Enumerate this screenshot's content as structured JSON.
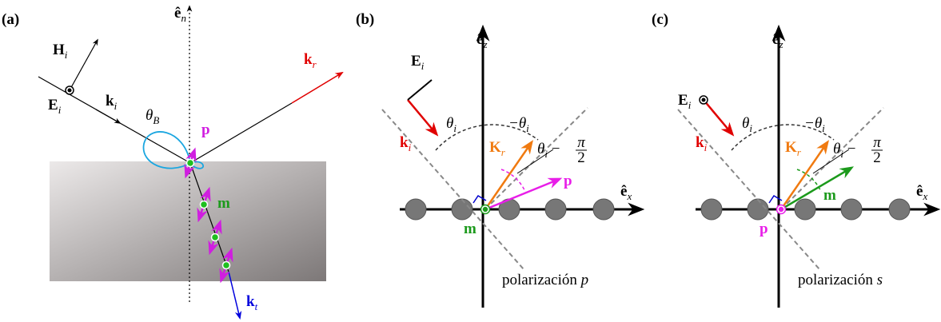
{
  "panel_a": {
    "label": "(a)",
    "normal": {
      "main": "ê",
      "sub": "n"
    },
    "H": {
      "main": "H",
      "sub": "i"
    },
    "E": {
      "main": "E",
      "sub": "i"
    },
    "ki": {
      "main": "k",
      "sub": "i"
    },
    "kr": {
      "main": "k",
      "sub": "r"
    },
    "theta_B": {
      "main": "θ",
      "sub": "B"
    },
    "p": "p",
    "m": "m",
    "kt": {
      "main": "k",
      "sub": "t"
    }
  },
  "panel_b": {
    "label": "(b)",
    "ez": {
      "main": "ê",
      "sub": "z"
    },
    "ex": {
      "main": "ê",
      "sub": "x"
    },
    "E": {
      "main": "E",
      "sub": "i"
    },
    "ki": {
      "main": "k",
      "sub": "i"
    },
    "theta": {
      "main": "θ",
      "sub": "i"
    },
    "neg_theta": {
      "main": "−θ",
      "sub": "i"
    },
    "Kr": {
      "main": "K",
      "sub": "r"
    },
    "angle": {
      "main": "θ",
      "sub": "i",
      "rest": " − ",
      "num": "π",
      "den": "2"
    },
    "vec": "p",
    "origin": "m",
    "caption": {
      "text": "polarización",
      "var": "p"
    }
  },
  "panel_c": {
    "label": "(c)",
    "ez": {
      "main": "ê",
      "sub": "z"
    },
    "ex": {
      "main": "ê",
      "sub": "x"
    },
    "E": {
      "main": "E",
      "sub": "i"
    },
    "ki": {
      "main": "k",
      "sub": "i"
    },
    "theta": {
      "main": "θ",
      "sub": "i"
    },
    "neg_theta": {
      "main": "−θ",
      "sub": "i"
    },
    "Kr": {
      "main": "K",
      "sub": "r"
    },
    "angle": {
      "main": "θ",
      "sub": "i",
      "rest": " − ",
      "num": "π",
      "den": "2"
    },
    "vec": "m",
    "origin": "p",
    "caption": {
      "text": "polarización",
      "var": "s"
    }
  }
}
